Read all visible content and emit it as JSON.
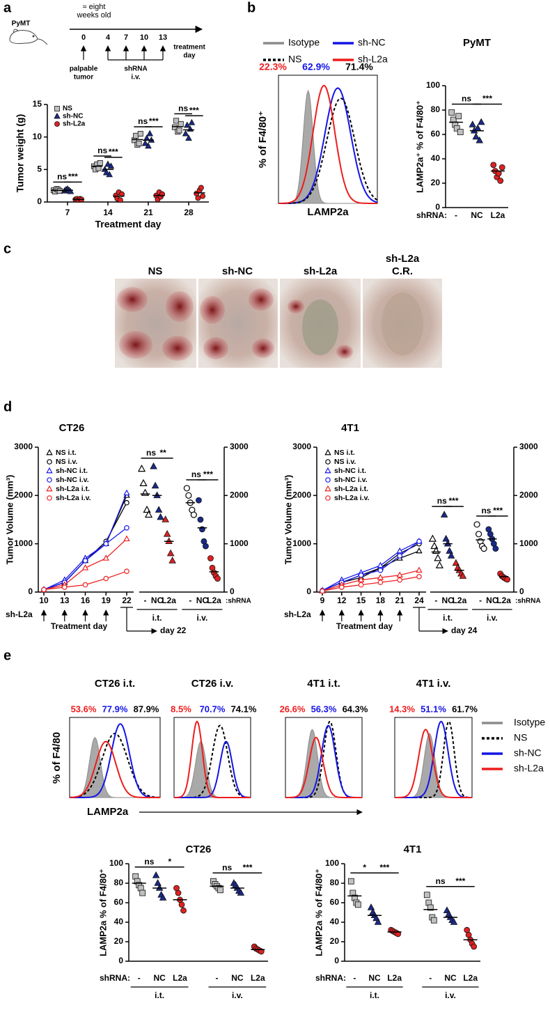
{
  "panel_labels": [
    "a",
    "b",
    "c",
    "d",
    "e"
  ],
  "timeline": {
    "model": "PyMT",
    "age": [
      "≈ eight",
      "weeks old"
    ],
    "days": [
      "0",
      "4",
      "7",
      "10",
      "13"
    ],
    "end_label": [
      "treatment",
      "day"
    ],
    "start_label": [
      "palpable",
      "tumor"
    ],
    "treatment_label": [
      "shRNA",
      "i.v."
    ]
  },
  "photos": {
    "labels": [
      [
        "NS"
      ],
      [
        "sh-NC"
      ],
      [
        "sh-L2a"
      ],
      [
        "sh-L2a",
        "C.R."
      ]
    ]
  },
  "flow_b": {
    "ylabel": "% of F4/80⁺",
    "xlabel": "LAMP2a",
    "legend": [
      {
        "name": "Isotype",
        "color": "#8c8c8c",
        "fill": true,
        "dash": false
      },
      {
        "name": "sh-NC",
        "color": "#1414e6",
        "fill": false,
        "dash": false
      },
      {
        "name": "NS",
        "color": "#000000",
        "fill": false,
        "dash": true
      },
      {
        "name": "sh-L2a",
        "color": "#ee1c1c",
        "fill": false,
        "dash": false
      }
    ],
    "percent_labels": [
      {
        "text": "22.3%",
        "color": "#ee1c1c"
      },
      {
        "text": "62.9%",
        "color": "#1414e6"
      },
      {
        "text": "71.4%",
        "color": "#000000"
      }
    ]
  },
  "flow_e": {
    "ylabel": "% of F4/80",
    "xlabel": "LAMP2a",
    "legend": [
      {
        "name": "Isotype",
        "color": "#8c8c8c",
        "fill": true,
        "dash": false
      },
      {
        "name": "NS",
        "color": "#000000",
        "fill": false,
        "dash": true
      },
      {
        "name": "sh-NC",
        "color": "#1414e6",
        "fill": false,
        "dash": false
      },
      {
        "name": "sh-L2a",
        "color": "#ee1c1c",
        "fill": false,
        "dash": false
      }
    ],
    "percent_colors": [
      "#ee1c1c",
      "#1414e6",
      "#000000"
    ],
    "panels": [
      {
        "title": "CT26 i.t.",
        "percent_labels": [
          "53.6%",
          "77.9%",
          "87.9%"
        ]
      },
      {
        "title": "CT26 i.v.",
        "percent_labels": [
          "8.5%",
          "70.7%",
          "74.1%"
        ]
      },
      {
        "title": "4T1 i.t.",
        "percent_labels": [
          "26.6%",
          "56.3%",
          "64.3%"
        ]
      },
      {
        "title": "4T1 i.v.",
        "percent_labels": [
          "14.3%",
          "51.1%",
          "61.7%"
        ]
      }
    ]
  },
  "chart_data": [
    {
      "type": "dotplot",
      "ylabel": "Tumor weight (g)",
      "xlabel": "Treatment day",
      "categories": [
        "7",
        "14",
        "21",
        "28"
      ],
      "ylim": [
        0,
        15
      ],
      "yticks": [
        0,
        5,
        10,
        15
      ],
      "series": [
        {
          "name": "NS",
          "color": "#c0c0c0",
          "marker": "square",
          "values": [
            [
              1.8,
              1.6,
              2.0,
              1.9,
              1.7
            ],
            [
              5.5,
              5.0,
              5.8,
              5.2,
              6.0
            ],
            [
              9.5,
              10.2,
              8.8,
              9.0,
              10.5
            ],
            [
              11.5,
              12.5,
              10.8,
              11.0,
              12.0
            ]
          ],
          "means": [
            1.8,
            5.5,
            9.6,
            11.6
          ]
        },
        {
          "name": "sh-NC",
          "color": "#1a2a8a",
          "marker": "triangle",
          "values": [
            [
              1.7,
              1.9,
              2.0,
              1.8,
              1.6
            ],
            [
              5.0,
              4.5,
              5.8,
              4.2,
              5.5
            ],
            [
              9.0,
              9.8,
              8.6,
              10.5,
              9.5
            ],
            [
              10.5,
              11.8,
              9.8,
              11.2,
              12.2
            ]
          ],
          "means": [
            1.8,
            5.0,
            9.5,
            11.1
          ]
        },
        {
          "name": "sh-L2a",
          "color": "#dd2222",
          "marker": "circle",
          "values": [
            [
              0.4,
              0.5,
              0.3,
              0.5,
              0.4
            ],
            [
              1.0,
              0.5,
              1.5,
              0.3,
              1.2
            ],
            [
              1.0,
              0.4,
              1.5,
              0.8,
              1.2
            ],
            [
              1.3,
              0.6,
              1.8,
              2.2,
              0.9
            ]
          ],
          "means": [
            0.4,
            0.9,
            1.0,
            1.4
          ]
        }
      ],
      "significance": [
        [
          "ns",
          "***"
        ],
        [
          "ns",
          "***"
        ],
        [
          "ns",
          "***"
        ],
        [
          "ns",
          "***"
        ]
      ]
    },
    {
      "type": "groupdot",
      "title": "PyMT",
      "ylabel": "LAMP2a⁺ % of F4/80⁺",
      "ylim": [
        0,
        100
      ],
      "yticks": [
        0,
        20,
        40,
        60,
        80,
        100
      ],
      "xprefix": "shRNA:",
      "groups": [
        {
          "categories": [
            "-",
            "NC",
            "L2a"
          ],
          "markers": [
            "square",
            "triangle",
            "circle"
          ],
          "colors": [
            "#c0c0c0",
            "#1a2a8a",
            "#dd2222"
          ],
          "points": [
            [
              78,
              72,
              68,
              65,
              75,
              62
            ],
            [
              68,
              63,
              58,
              65,
              55,
              70
            ],
            [
              35,
              30,
              25,
              28,
              22,
              33
            ]
          ],
          "means": [
            70,
            63,
            30
          ],
          "significance": [
            "ns",
            "***"
          ]
        }
      ]
    },
    {
      "type": "growth",
      "title": "CT26",
      "ylabel": "Tumor Volume (mm³)",
      "xlabel": "Treatment day",
      "dosing_label": "sh-L2a",
      "endpoint_label": "day 22",
      "xsuffix": ":shRNA",
      "x": [
        10,
        13,
        16,
        19,
        22
      ],
      "xlim": [
        10,
        22
      ],
      "xticks": [
        10,
        13,
        16,
        19,
        22
      ],
      "ylim": [
        0,
        3000
      ],
      "yticks": [
        0,
        1000,
        2000,
        3000
      ],
      "y2lim": [
        0,
        3000
      ],
      "y2ticks": [
        0,
        1000,
        2000,
        3000
      ],
      "series": [
        {
          "name": "NS i.t.",
          "color": "#000000",
          "marker": "triangle",
          "hollow": true,
          "values": [
            50,
            200,
            650,
            1000,
            2000
          ]
        },
        {
          "name": "NS i.v.",
          "color": "#000000",
          "marker": "circle",
          "hollow": true,
          "values": [
            50,
            200,
            650,
            1050,
            1850
          ]
        },
        {
          "name": "sh-NC i.t.",
          "color": "#1a1aee",
          "marker": "triangle",
          "hollow": true,
          "values": [
            50,
            250,
            700,
            1000,
            2050
          ]
        },
        {
          "name": "sh-NC i.v.",
          "color": "#1a1aee",
          "marker": "circle",
          "hollow": true,
          "values": [
            50,
            200,
            650,
            1000,
            1330
          ]
        },
        {
          "name": "sh-L2a i.t.",
          "color": "#ee2222",
          "marker": "triangle",
          "hollow": true,
          "values": [
            50,
            150,
            500,
            700,
            1100
          ]
        },
        {
          "name": "sh-L2a i.v.",
          "color": "#ee2222",
          "marker": "circle",
          "hollow": true,
          "values": [
            50,
            100,
            150,
            280,
            430
          ]
        }
      ],
      "dot_groups": [
        {
          "label": "i.t.",
          "categories": [
            "-",
            "NC",
            "L2a"
          ],
          "markers": [
            "triangle",
            "triangle",
            "triangle"
          ],
          "colors": [
            "#000000",
            "#1a2a8a",
            "#dd2222"
          ],
          "hollow": [
            true,
            false,
            false
          ],
          "points": [
            [
              2550,
              2250,
              2050,
              1700,
              1600
            ],
            [
              2600,
              2200,
              2000,
              1700,
              1550
            ],
            [
              1500,
              1200,
              1050,
              800,
              650
            ]
          ],
          "means": [
            2030,
            2000,
            1050
          ],
          "significance": [
            "ns",
            "**"
          ]
        },
        {
          "label": "i.v.",
          "categories": [
            "-",
            "NC",
            "L2a"
          ],
          "markers": [
            "circle",
            "circle",
            "circle"
          ],
          "colors": [
            "#000000",
            "#1a2a8a",
            "#dd2222"
          ],
          "hollow": [
            true,
            false,
            false
          ],
          "points": [
            [
              2150,
              2000,
              1850,
              1700,
              1600
            ],
            [
              1900,
              1500,
              1300,
              1050,
              950
            ],
            [
              700,
              500,
              400,
              330,
              280
            ]
          ],
          "means": [
            1850,
            1330,
            420
          ],
          "significance": [
            "ns",
            "***"
          ]
        }
      ]
    },
    {
      "type": "growth",
      "title": "4T1",
      "ylabel": "Tumor Volume (mm³)",
      "xlabel": "Treatment day",
      "dosing_label": "sh-L2a",
      "endpoint_label": "day 24",
      "xsuffix": ":shRNA",
      "x": [
        9,
        12,
        15,
        18,
        21,
        24
      ],
      "xlim": [
        9,
        24
      ],
      "xticks": [
        9,
        12,
        15,
        18,
        21,
        24
      ],
      "ylim": [
        0,
        3000
      ],
      "yticks": [
        0,
        1000,
        2000,
        3000
      ],
      "y2lim": [
        0,
        3000
      ],
      "y2ticks": [
        0,
        1000,
        2000,
        3000
      ],
      "series": [
        {
          "name": "NS i.t.",
          "color": "#000000",
          "marker": "triangle",
          "hollow": true,
          "values": [
            30,
            200,
            300,
            500,
            700,
            850
          ]
        },
        {
          "name": "NS i.v.",
          "color": "#000000",
          "marker": "circle",
          "hollow": true,
          "values": [
            30,
            200,
            350,
            500,
            800,
            1000
          ]
        },
        {
          "name": "sh-NC i.t.",
          "color": "#1a1aee",
          "marker": "triangle",
          "hollow": true,
          "values": [
            30,
            250,
            400,
            550,
            850,
            1050
          ]
        },
        {
          "name": "sh-NC i.v.",
          "color": "#1a1aee",
          "marker": "circle",
          "hollow": true,
          "values": [
            30,
            200,
            350,
            450,
            750,
            1050
          ]
        },
        {
          "name": "sh-L2a i.t.",
          "color": "#ee2222",
          "marker": "triangle",
          "hollow": true,
          "values": [
            20,
            150,
            250,
            300,
            350,
            450
          ]
        },
        {
          "name": "sh-L2a i.v.",
          "color": "#ee2222",
          "marker": "circle",
          "hollow": true,
          "values": [
            20,
            100,
            150,
            200,
            250,
            320
          ]
        }
      ],
      "dot_groups": [
        {
          "label": "i.t.",
          "categories": [
            "-",
            "NC",
            "L2a"
          ],
          "markers": [
            "triangle",
            "triangle",
            "triangle"
          ],
          "colors": [
            "#000000",
            "#1a2a8a",
            "#dd2222"
          ],
          "hollow": [
            true,
            false,
            false
          ],
          "points": [
            [
              1100,
              950,
              850,
              700,
              550
            ],
            [
              1600,
              1100,
              1000,
              850,
              750
            ],
            [
              600,
              500,
              450,
              380,
              330
            ]
          ],
          "means": [
            830,
            1000,
            450
          ],
          "significance": [
            "ns",
            "***"
          ]
        },
        {
          "label": "i.v.",
          "categories": [
            "-",
            "NC",
            "L2a"
          ],
          "markers": [
            "circle",
            "circle",
            "circle"
          ],
          "colors": [
            "#000000",
            "#1a2a8a",
            "#dd2222"
          ],
          "hollow": [
            true,
            false,
            false
          ],
          "points": [
            [
              1400,
              1200,
              1050,
              950,
              900
            ],
            [
              1300,
              1200,
              1100,
              1000,
              900
            ],
            [
              380,
              330,
              300,
              280,
              260
            ]
          ],
          "means": [
            1080,
            1100,
            320
          ],
          "significance": [
            "ns",
            "***"
          ]
        }
      ]
    },
    {
      "type": "groupdot",
      "title": "CT26",
      "ylabel": "LAMP2a % of F4/80⁺",
      "ylim": [
        0,
        100
      ],
      "yticks": [
        0,
        20,
        40,
        60,
        80,
        100
      ],
      "xprefix": "shRNA:",
      "groups": [
        {
          "label": "i.t.",
          "categories": [
            "-",
            "NC",
            "L2a"
          ],
          "markers": [
            "square",
            "triangle",
            "circle"
          ],
          "colors": [
            "#c0c0c0",
            "#1a2a8a",
            "#dd2222"
          ],
          "points": [
            [
              87,
              82,
              78,
              75,
              70
            ],
            [
              88,
              80,
              75,
              68,
              65
            ],
            [
              75,
              70,
              63,
              58,
              52
            ]
          ],
          "means": [
            80,
            75,
            63
          ],
          "significance": [
            "ns",
            "*"
          ]
        },
        {
          "label": "i.v.",
          "categories": [
            "-",
            "NC",
            "L2a"
          ],
          "markers": [
            "square",
            "triangle",
            "circle"
          ],
          "colors": [
            "#c0c0c0",
            "#1a2a8a",
            "#dd2222"
          ],
          "points": [
            [
              82,
              79,
              77,
              75,
              73
            ],
            [
              80,
              78,
              75,
              72,
              70
            ],
            [
              15,
              13,
              12,
              11,
              10
            ]
          ],
          "means": [
            77,
            75,
            12
          ],
          "significance": [
            "ns",
            "***"
          ]
        }
      ]
    },
    {
      "type": "groupdot",
      "title": "4T1",
      "ylabel": "LAMP2a % of F4/80⁺",
      "ylim": [
        0,
        100
      ],
      "yticks": [
        0,
        20,
        40,
        60,
        80,
        100
      ],
      "xprefix": "shRNA:",
      "groups": [
        {
          "label": "i.t.",
          "categories": [
            "-",
            "NC",
            "L2a"
          ],
          "markers": [
            "square",
            "triangle",
            "circle"
          ],
          "colors": [
            "#c0c0c0",
            "#1a2a8a",
            "#dd2222"
          ],
          "points": [
            [
              82,
              70,
              65,
              60,
              58
            ],
            [
              55,
              50,
              47,
              44,
              40
            ],
            [
              32,
              31,
              30,
              29,
              28
            ]
          ],
          "means": [
            67,
            47,
            30
          ],
          "significance": [
            "*",
            "***"
          ]
        },
        {
          "label": "i.v.",
          "categories": [
            "-",
            "NC",
            "L2a"
          ],
          "markers": [
            "square",
            "triangle",
            "circle"
          ],
          "colors": [
            "#c0c0c0",
            "#1a2a8a",
            "#dd2222"
          ],
          "points": [
            [
              68,
              60,
              55,
              45,
              42
            ],
            [
              52,
              48,
              45,
              42,
              40
            ],
            [
              32,
              27,
              22,
              18,
              15
            ]
          ],
          "means": [
            53,
            45,
            22
          ],
          "significance": [
            "ns",
            "***"
          ]
        }
      ]
    }
  ]
}
